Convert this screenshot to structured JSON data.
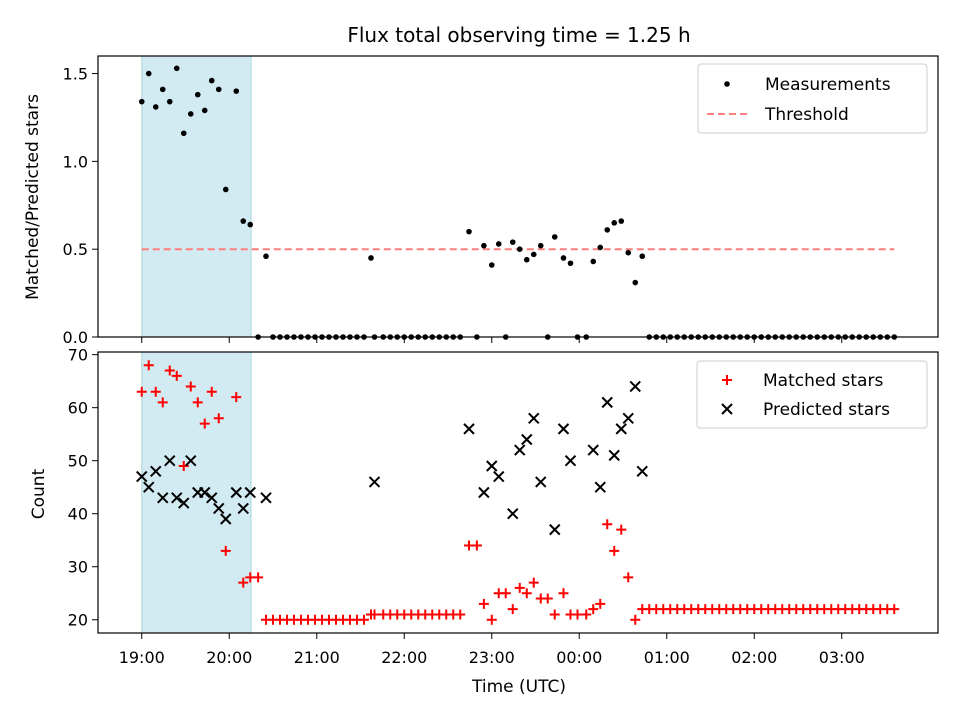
{
  "title": "Flux total observing time = 1.25 h",
  "colors": {
    "shade": "#add8e6",
    "threshold": "#ff7f7f",
    "matched": "#ff0000",
    "predicted": "#000000",
    "measure": "#000000"
  },
  "chart_data": [
    {
      "type": "scatter",
      "name": "ratio",
      "ylabel": "Matched/Predicted stars",
      "xlim": [
        18.5,
        4.1
      ],
      "ylim": [
        0,
        1.6
      ],
      "yticks": [
        "0.0",
        "0.5",
        "1.0",
        "1.5"
      ],
      "legend": {
        "placement": "top-right",
        "entries": [
          "Measurements",
          "Threshold"
        ]
      },
      "shaded_interval": [
        19.0,
        20.25
      ],
      "threshold": {
        "value": 0.5,
        "x_range": [
          19.0,
          3.6
        ]
      },
      "series": [
        {
          "name": "Measurements",
          "x": [
            19.0,
            19.08,
            19.16,
            19.24,
            19.32,
            19.4,
            19.48,
            19.56,
            19.64,
            19.72,
            19.8,
            19.88,
            19.96,
            20.08,
            20.16,
            20.24,
            20.33,
            20.42,
            20.5,
            20.58,
            20.66,
            20.74,
            20.82,
            20.9,
            20.98,
            21.06,
            21.14,
            21.22,
            21.3,
            21.38,
            21.46,
            21.54,
            21.62,
            21.66,
            21.76,
            21.84,
            21.92,
            22.0,
            22.08,
            22.16,
            22.24,
            22.32,
            22.4,
            22.48,
            22.56,
            22.64,
            22.74,
            22.83,
            22.91,
            23.0,
            23.08,
            23.16,
            23.24,
            23.32,
            23.4,
            23.48,
            23.56,
            23.64,
            23.72,
            23.82,
            23.9,
            23.98,
            24.08,
            24.16,
            24.24,
            24.32,
            24.4,
            24.48,
            24.56,
            24.64,
            24.72,
            24.8,
            24.88,
            24.96,
            25.04,
            25.12,
            25.2,
            25.28,
            25.36,
            25.44,
            25.52,
            25.6,
            25.68,
            25.76,
            25.84,
            25.92,
            26.0,
            26.08,
            26.16,
            26.24,
            26.32,
            26.4,
            26.48,
            26.56,
            26.64,
            26.72,
            26.8,
            26.88,
            26.96,
            27.04,
            27.12,
            27.2,
            27.28,
            27.36,
            27.44,
            27.52,
            27.6
          ],
          "y": [
            1.34,
            1.5,
            1.31,
            1.41,
            1.34,
            1.53,
            1.16,
            1.27,
            1.38,
            1.29,
            1.46,
            1.41,
            0.84,
            1.4,
            0.66,
            0.64,
            0.0,
            0.46,
            0.0,
            0.0,
            0.0,
            0.0,
            0.0,
            0.0,
            0.0,
            0.0,
            0.0,
            0.0,
            0.0,
            0.0,
            0.0,
            0.0,
            0.45,
            0.0,
            0.0,
            0.0,
            0.0,
            0.0,
            0.0,
            0.0,
            0.0,
            0.0,
            0.0,
            0.0,
            0.0,
            0.0,
            0.6,
            0.0,
            0.52,
            0.41,
            0.53,
            0.0,
            0.54,
            0.5,
            0.44,
            0.47,
            0.52,
            0.0,
            0.57,
            0.45,
            0.42,
            0.0,
            0.0,
            0.43,
            0.51,
            0.61,
            0.65,
            0.66,
            0.48,
            0.31,
            0.46,
            0.0,
            0.0,
            0.0,
            0.0,
            0.0,
            0.0,
            0.0,
            0.0,
            0.0,
            0.0,
            0.0,
            0.0,
            0.0,
            0.0,
            0.0,
            0.0,
            0.0,
            0.0,
            0.0,
            0.0,
            0.0,
            0.0,
            0.0,
            0.0,
            0.0,
            0.0,
            0.0,
            0.0,
            0.0,
            0.0,
            0.0,
            0.0,
            0.0,
            0.0,
            0.0,
            0.0
          ]
        }
      ]
    },
    {
      "type": "scatter",
      "name": "counts",
      "xlabel": "Time (UTC)",
      "ylabel": "Count",
      "xlim": [
        18.5,
        4.1
      ],
      "ylim": [
        17.5,
        70.5
      ],
      "yticks": [
        "20",
        "30",
        "40",
        "50",
        "60",
        "70"
      ],
      "xticks": [
        "19:00",
        "20:00",
        "21:00",
        "22:00",
        "23:00",
        "00:00",
        "01:00",
        "02:00",
        "03:00"
      ],
      "legend": {
        "placement": "top-right",
        "entries": [
          "Matched stars",
          "Predicted stars"
        ]
      },
      "shaded_interval": [
        19.0,
        20.25
      ],
      "series": [
        {
          "name": "Matched stars",
          "x": [
            19.0,
            19.08,
            19.16,
            19.24,
            19.32,
            19.4,
            19.48,
            19.56,
            19.64,
            19.72,
            19.8,
            19.88,
            19.96,
            20.08,
            20.16,
            20.24,
            20.33,
            20.42,
            20.5,
            20.58,
            20.66,
            20.74,
            20.82,
            20.9,
            20.98,
            21.06,
            21.14,
            21.22,
            21.3,
            21.38,
            21.46,
            21.54,
            21.62,
            21.66,
            21.76,
            21.84,
            21.92,
            22.0,
            22.08,
            22.16,
            22.24,
            22.32,
            22.4,
            22.48,
            22.56,
            22.64,
            22.74,
            22.83,
            22.91,
            23.0,
            23.08,
            23.16,
            23.24,
            23.32,
            23.4,
            23.48,
            23.56,
            23.64,
            23.72,
            23.82,
            23.9,
            23.98,
            24.08,
            24.16,
            24.24,
            24.32,
            24.4,
            24.48,
            24.56,
            24.64,
            24.72,
            24.8,
            24.88,
            24.96,
            25.04,
            25.12,
            25.2,
            25.28,
            25.36,
            25.44,
            25.52,
            25.6,
            25.68,
            25.76,
            25.84,
            25.92,
            26.0,
            26.08,
            26.16,
            26.24,
            26.32,
            26.4,
            26.48,
            26.56,
            26.64,
            26.72,
            26.8,
            26.88,
            26.96,
            27.04,
            27.12,
            27.2,
            27.28,
            27.36,
            27.44,
            27.52,
            27.6
          ],
          "y": [
            63,
            68,
            63,
            61,
            67,
            66,
            49,
            64,
            61,
            57,
            63,
            58,
            33,
            62,
            27,
            28,
            28,
            20,
            20,
            20,
            20,
            20,
            20,
            20,
            20,
            20,
            20,
            20,
            20,
            20,
            20,
            20,
            21,
            21,
            21,
            21,
            21,
            21,
            21,
            21,
            21,
            21,
            21,
            21,
            21,
            21,
            34,
            34,
            23,
            20,
            25,
            25,
            22,
            26,
            25,
            27,
            24,
            24,
            21,
            25,
            21,
            21,
            21,
            22,
            23,
            38,
            33,
            37,
            28,
            20,
            22,
            22,
            22,
            22,
            22,
            22,
            22,
            22,
            22,
            22,
            22,
            22,
            22,
            22,
            22,
            22,
            22,
            22,
            22,
            22,
            22,
            22,
            22,
            22,
            22,
            22,
            22,
            22,
            22,
            22,
            22,
            22,
            22,
            22,
            22,
            22,
            22
          ]
        },
        {
          "name": "Predicted stars",
          "x": [
            19.0,
            19.08,
            19.16,
            19.24,
            19.32,
            19.4,
            19.48,
            19.56,
            19.64,
            19.72,
            19.8,
            19.88,
            19.96,
            20.08,
            20.16,
            20.24,
            20.42,
            21.66,
            22.74,
            22.91,
            23.0,
            23.08,
            23.24,
            23.32,
            23.4,
            23.48,
            23.56,
            23.72,
            23.82,
            23.9,
            24.16,
            24.24,
            24.32,
            24.4,
            24.48,
            24.56,
            24.64,
            24.72
          ],
          "y": [
            47,
            45,
            48,
            43,
            50,
            43,
            42,
            50,
            44,
            44,
            43,
            41,
            39,
            44,
            41,
            44,
            43,
            46,
            56,
            44,
            49,
            47,
            40,
            52,
            54,
            58,
            46,
            37,
            56,
            50,
            52,
            45,
            61,
            51,
            56,
            58,
            64,
            48
          ]
        }
      ]
    }
  ]
}
